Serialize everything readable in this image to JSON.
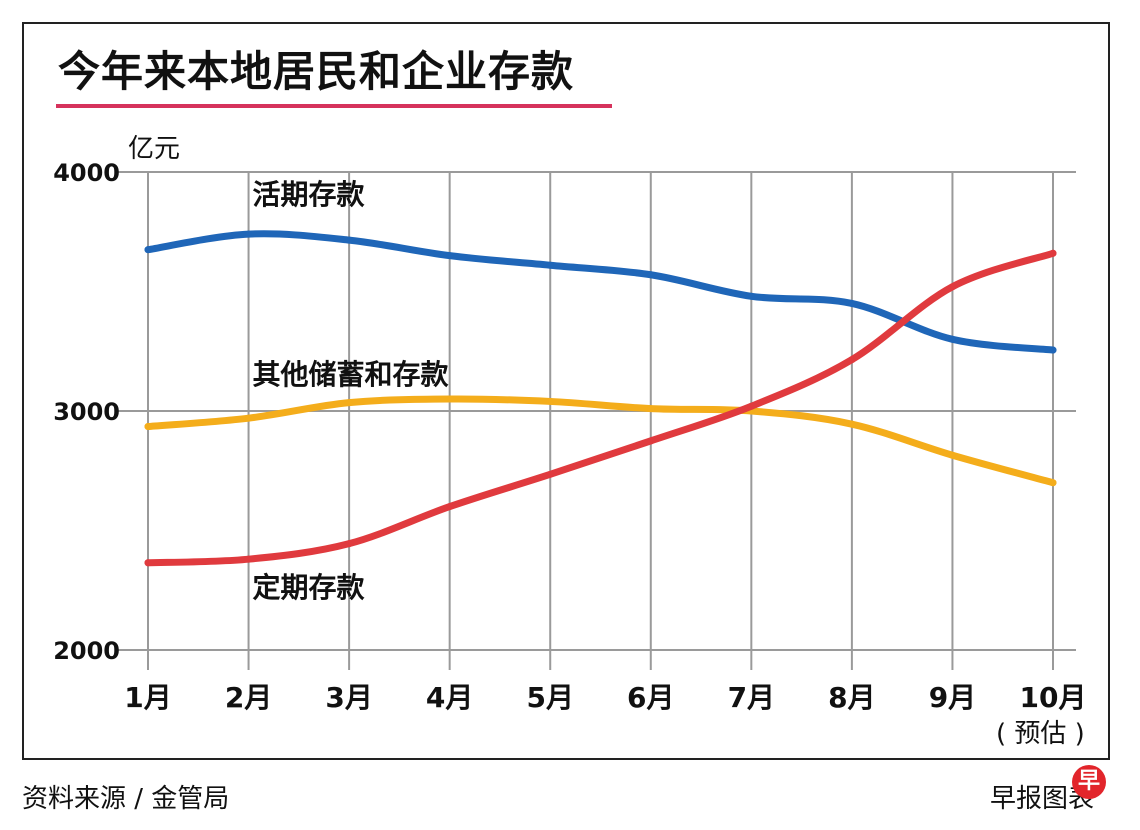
{
  "chart_data": {
    "type": "line",
    "title": "今年来本地居民和企业存款",
    "ylabel": "亿元",
    "xlabel": "",
    "ylim": [
      2000,
      4000
    ],
    "yticks": [
      2000,
      3000,
      4000
    ],
    "categories": [
      "1月",
      "2月",
      "3月",
      "4月",
      "5月",
      "6月",
      "7月",
      "8月",
      "9月",
      "10月"
    ],
    "x_note": "( 预估 )",
    "series": [
      {
        "name": "活期存款",
        "color": "#1f66b8",
        "values": [
          3675,
          3740,
          3715,
          3650,
          3610,
          3570,
          3480,
          3450,
          3300,
          3255
        ]
      },
      {
        "name": "其他储蓄和存款",
        "color": "#f4ad1b",
        "values": [
          2935,
          2970,
          3035,
          3050,
          3040,
          3010,
          3000,
          2945,
          2815,
          2700
        ]
      },
      {
        "name": "定期存款",
        "color": "#e03a3e",
        "values": [
          2365,
          2380,
          2445,
          2600,
          2735,
          2875,
          3020,
          3215,
          3520,
          3660
        ]
      }
    ],
    "grid": true
  },
  "footer": {
    "source": "资料来源 / 金管局",
    "credit": "早报图表",
    "logo": "早"
  },
  "colors": {
    "title_underline": "#d6325c",
    "grid": "#9a9a9a"
  }
}
